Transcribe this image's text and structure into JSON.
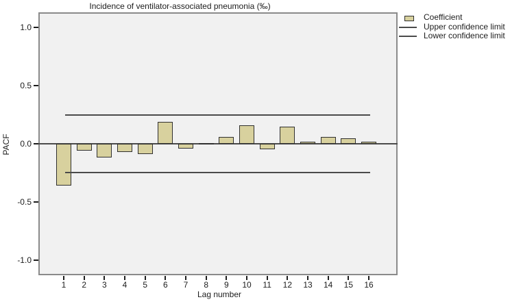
{
  "title": "Incidence of ventilator-associated pneumonia (‰)",
  "legend": {
    "items": [
      {
        "label": "Coefficient",
        "marker": "swatch-icon"
      },
      {
        "label": "Upper confidence limit",
        "marker": "line-icon"
      },
      {
        "label": "Lower confidence limit",
        "marker": "line-icon"
      }
    ]
  },
  "chart_data": {
    "type": "bar",
    "title": "Incidence of ventilator-associated pneumonia (‰)",
    "xlabel": "Lag number",
    "ylabel": "PACF",
    "categories": [
      "1",
      "2",
      "3",
      "4",
      "5",
      "6",
      "7",
      "8",
      "9",
      "10",
      "11",
      "12",
      "13",
      "14",
      "15",
      "16"
    ],
    "values": [
      -0.36,
      -0.06,
      -0.12,
      -0.07,
      -0.09,
      0.19,
      -0.04,
      0.005,
      0.06,
      0.16,
      -0.045,
      0.15,
      0.02,
      0.06,
      0.05,
      0.015
    ],
    "series_name": "Coefficient",
    "upper_confidence_limit": 0.245,
    "lower_confidence_limit": -0.245,
    "ylim": [
      -1.13,
      1.13
    ],
    "yticks": [
      1.0,
      0.5,
      0.0,
      -0.5,
      -1.0
    ],
    "ytick_labels": [
      "1.0",
      "0.5",
      "0.0",
      "-0.5",
      "-1.0"
    ],
    "grid": false,
    "legend_position": "top-right",
    "colors": {
      "bar_fill": "#d8d19e",
      "bar_border": "#2f2f2f",
      "plot_background": "#f1f1f1",
      "frame": "#8a8a8a",
      "reference_line": "#4a4a4a",
      "text": "#1c1c1c",
      "page_background": "#ffffff"
    }
  }
}
